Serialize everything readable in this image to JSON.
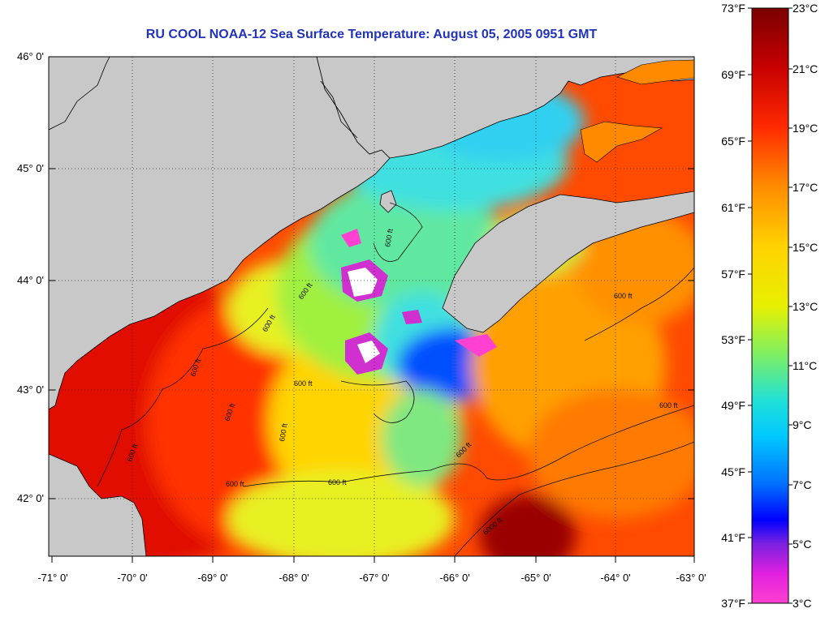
{
  "title": "RU COOL  NOAA-12  Sea Surface Temperature:  August 05, 2005 0951 GMT",
  "map": {
    "lat_labels": [
      "46° 0'",
      "45° 0'",
      "44° 0'",
      "43° 0'",
      "42° 0'"
    ],
    "lon_labels": [
      "-71° 0'",
      "-70° 0'",
      "-69° 0'",
      "-68° 0'",
      "-67° 0'",
      "-66° 0'",
      "-65° 0'",
      "-64° 0'",
      "-63° 0'"
    ],
    "contour_labels": [
      "600 ft",
      "600 ft",
      "600 ft",
      "600 ft",
      "600 ft",
      "600 ft",
      "600 ft",
      "600 ft",
      "600 ft",
      "600 ft",
      "600 ft",
      "600 ft",
      "600 ft",
      "6000 ft"
    ]
  },
  "colorbar": {
    "fahrenheit_labels": [
      "73°F",
      "69°F",
      "65°F",
      "61°F",
      "57°F",
      "53°F",
      "49°F",
      "45°F",
      "41°F",
      "37°F"
    ],
    "celsius_labels": [
      "23°C",
      "21°C",
      "19°C",
      "17°C",
      "15°C",
      "13°C",
      "11°C",
      "9°C",
      "7°C",
      "5°C",
      "3°C"
    ],
    "range_f": [
      37,
      73
    ],
    "range_c": [
      3,
      23
    ]
  },
  "colors": {
    "land": "#c8c8c8",
    "title": "#2233bb"
  }
}
